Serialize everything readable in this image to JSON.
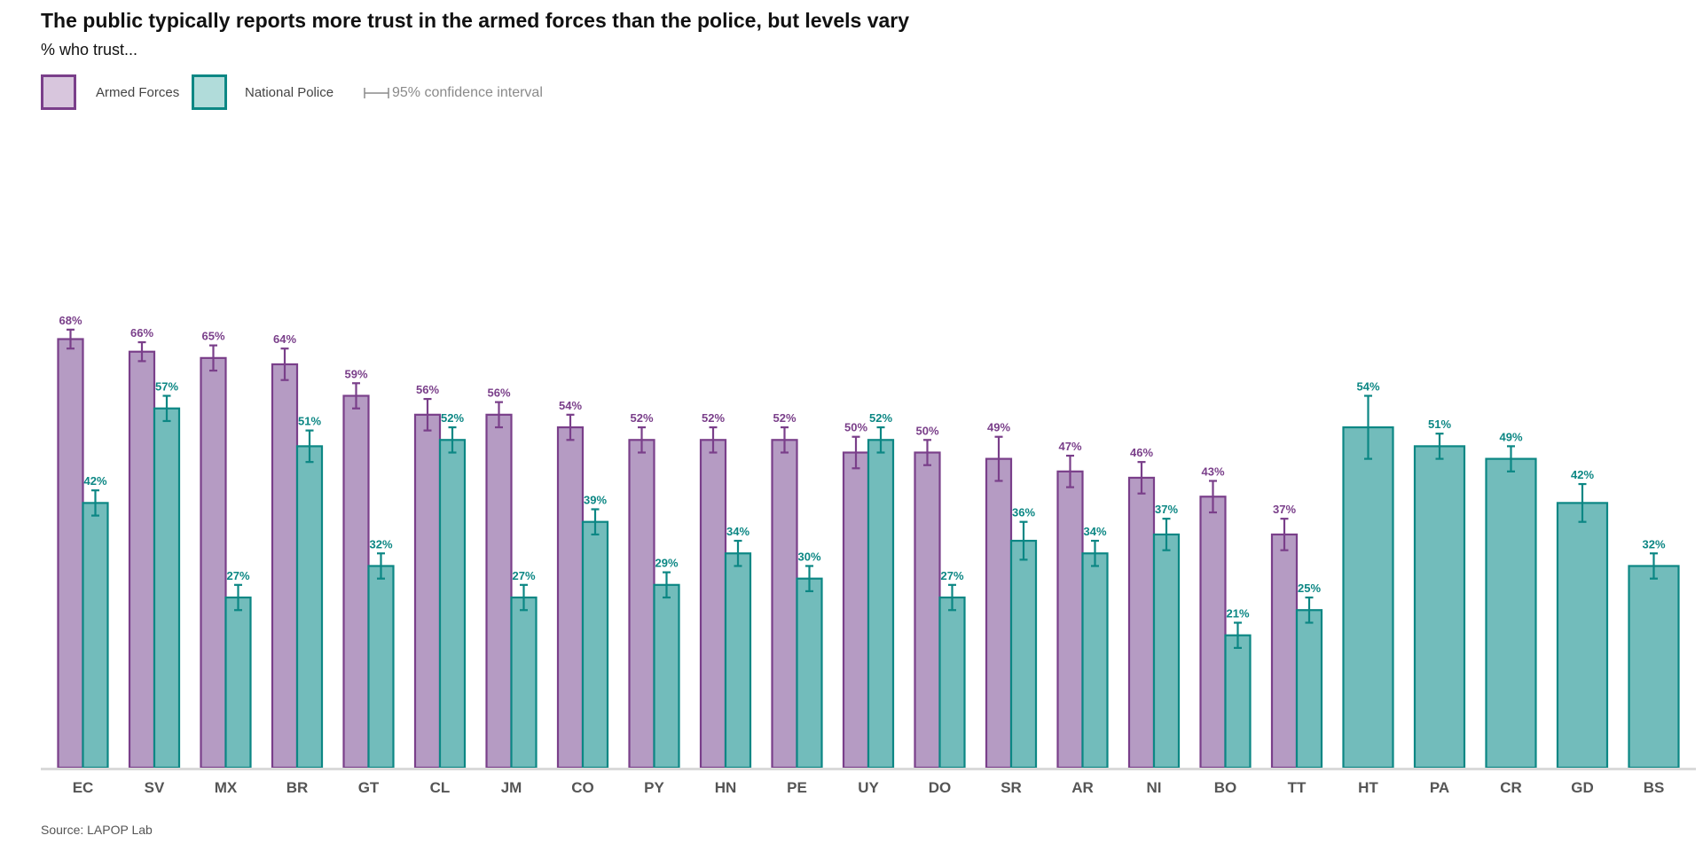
{
  "title": "The public typically reports more trust in the armed forces than the police, but levels vary",
  "subtitle": "% who trust...",
  "legend": {
    "armed_forces": "Armed Forces",
    "national_police": "National Police",
    "ci": "95% confidence interval"
  },
  "source": "Source: LAPOP Lab",
  "colors": {
    "armed_forces_fill": "#b59bc3",
    "armed_forces_stroke": "#7a3f8a",
    "armed_forces_legend_fill": "#d8c6dd",
    "police_fill": "#72bcbb",
    "police_stroke": "#0c8784",
    "police_legend_fill": "#b1dcda",
    "axis": "#d9d9d9",
    "tick_label": "#555555"
  },
  "chart_data": {
    "type": "bar",
    "title": "The public typically reports more trust in the armed forces than the police, but levels vary",
    "subtitle": "% who trust...",
    "ylim": [
      0,
      100
    ],
    "grid": false,
    "legend_position": "top-left",
    "categories": [
      "EC",
      "SV",
      "MX",
      "BR",
      "GT",
      "CL",
      "JM",
      "CO",
      "PY",
      "HN",
      "PE",
      "UY",
      "DO",
      "SR",
      "AR",
      "NI",
      "BO",
      "TT",
      "HT",
      "PA",
      "CR",
      "GD",
      "BS"
    ],
    "series": [
      {
        "name": "Armed Forces",
        "values": [
          68,
          66,
          65,
          64,
          59,
          56,
          56,
          54,
          52,
          52,
          52,
          50,
          50,
          49,
          47,
          46,
          43,
          37,
          null,
          null,
          null,
          null,
          null
        ],
        "labels": [
          "68%",
          "66%",
          "65%",
          "64%",
          "59%",
          "56%",
          "56%",
          "54%",
          "52%",
          "52%",
          "52%",
          "50%",
          "50%",
          "49%",
          "47%",
          "46%",
          "43%",
          "37%",
          null,
          null,
          null,
          null,
          null
        ],
        "ci": [
          [
            66.5,
            69.5
          ],
          [
            64.5,
            67.5
          ],
          [
            63,
            67
          ],
          [
            61.5,
            66.5
          ],
          [
            57,
            61
          ],
          [
            53.5,
            58.5
          ],
          [
            54,
            58
          ],
          [
            52,
            56
          ],
          [
            50,
            54
          ],
          [
            50,
            54
          ],
          [
            50,
            54
          ],
          [
            47.5,
            52.5
          ],
          [
            48,
            52
          ],
          [
            45.5,
            52.5
          ],
          [
            44.5,
            49.5
          ],
          [
            43.5,
            48.5
          ],
          [
            40.5,
            45.5
          ],
          [
            34.5,
            39.5
          ],
          null,
          null,
          null,
          null,
          null
        ]
      },
      {
        "name": "National Police",
        "values": [
          42,
          57,
          27,
          51,
          32,
          52,
          27,
          39,
          29,
          34,
          30,
          52,
          27,
          36,
          34,
          37,
          21,
          25,
          54,
          51,
          49,
          42,
          32
        ],
        "labels": [
          "42%",
          "57%",
          "27%",
          "51%",
          "32%",
          "52%",
          "27%",
          "39%",
          "29%",
          "34%",
          "30%",
          "52%",
          "27%",
          "36%",
          "34%",
          "37%",
          "21%",
          "25%",
          "54%",
          "51%",
          "49%",
          "42%",
          "32%"
        ],
        "ci": [
          [
            40,
            44
          ],
          [
            55,
            59
          ],
          [
            25,
            29
          ],
          [
            48.5,
            53.5
          ],
          [
            30,
            34
          ],
          [
            50,
            54
          ],
          [
            25,
            29
          ],
          [
            37,
            41
          ],
          [
            27,
            31
          ],
          [
            32,
            36
          ],
          [
            28,
            32
          ],
          [
            50,
            54
          ],
          [
            25,
            29
          ],
          [
            33,
            39
          ],
          [
            32,
            36
          ],
          [
            34.5,
            39.5
          ],
          [
            19,
            23
          ],
          [
            23,
            27
          ],
          [
            49,
            59
          ],
          [
            49,
            53
          ],
          [
            47,
            51
          ],
          [
            39,
            45
          ],
          [
            30,
            34
          ]
        ]
      }
    ]
  }
}
